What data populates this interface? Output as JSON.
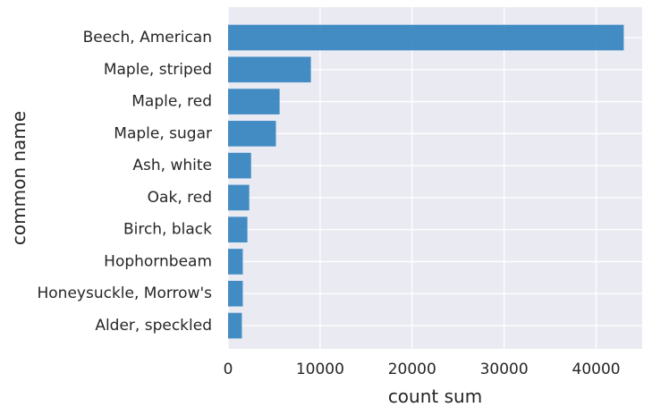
{
  "chart_data": {
    "type": "bar",
    "orientation": "horizontal",
    "title": "",
    "xlabel": "count sum",
    "ylabel": "common name",
    "categories": [
      "Beech, American",
      "Maple, striped",
      "Maple, red",
      "Maple, sugar",
      "Ash, white",
      "Oak, red",
      "Birch, black",
      "Hophornbeam",
      "Honeysuckle, Morrow's",
      "Alder, speckled"
    ],
    "values": [
      43000,
      9000,
      5600,
      5200,
      2500,
      2300,
      2100,
      1600,
      1600,
      1500
    ],
    "xlim": [
      0,
      45000
    ],
    "xticks": [
      0,
      10000,
      20000,
      30000,
      40000
    ],
    "xtick_labels": [
      "0",
      "10000",
      "20000",
      "30000",
      "40000"
    ],
    "grid": true,
    "bar_color": "#3a87c0",
    "background_color": "#eaeaf2",
    "grid_color": "#ffffff"
  }
}
